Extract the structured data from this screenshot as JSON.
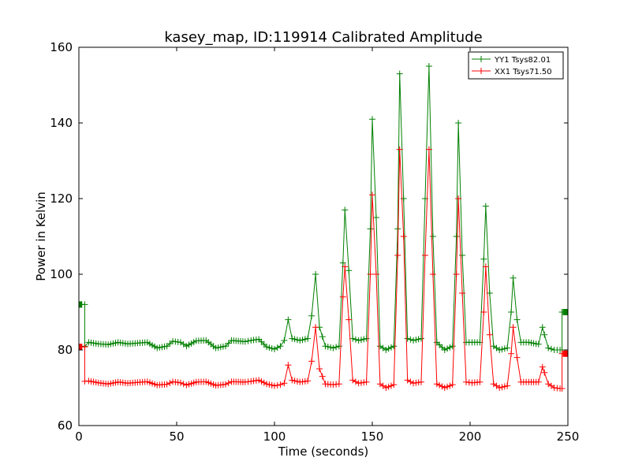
{
  "chart_data": {
    "type": "line",
    "title": "kasey_map, ID:119914 Calibrated Amplitude",
    "xlabel": "Time (seconds)",
    "ylabel": "Power in Kelvin",
    "xlim": [
      0,
      250
    ],
    "ylim": [
      60,
      160
    ],
    "xticks": [
      0,
      50,
      100,
      150,
      200,
      250
    ],
    "yticks": [
      60,
      80,
      100,
      120,
      140,
      160
    ],
    "grid": false,
    "legend_position": "top-right",
    "series": [
      {
        "name": "YY1 Tsys82.01",
        "color": "#008000",
        "marker": "plus",
        "points": [
          [
            0,
            92
          ],
          [
            3,
            92
          ],
          [
            3,
            81
          ],
          [
            5,
            82
          ],
          [
            10,
            81.6
          ],
          [
            15,
            81.4
          ],
          [
            20,
            82
          ],
          [
            25,
            81.6
          ],
          [
            30,
            81.8
          ],
          [
            35,
            82
          ],
          [
            40,
            80.5
          ],
          [
            45,
            81
          ],
          [
            48,
            82.3
          ],
          [
            52,
            82
          ],
          [
            55,
            81
          ],
          [
            60,
            82.4
          ],
          [
            65,
            82.5
          ],
          [
            70,
            80.5
          ],
          [
            75,
            81
          ],
          [
            78,
            82.5
          ],
          [
            85,
            82.2
          ],
          [
            88,
            82.5
          ],
          [
            92,
            82.8
          ],
          [
            96,
            80.8
          ],
          [
            100,
            80.2
          ],
          [
            103,
            81
          ],
          [
            105,
            82.5
          ],
          [
            107,
            88
          ],
          [
            109,
            83
          ],
          [
            113,
            82.5
          ],
          [
            117,
            83
          ],
          [
            119,
            89
          ],
          [
            121,
            100
          ],
          [
            123,
            86
          ],
          [
            126,
            81
          ],
          [
            130,
            80.5
          ],
          [
            133,
            81
          ],
          [
            135,
            103
          ],
          [
            136,
            117
          ],
          [
            138,
            101
          ],
          [
            140,
            83
          ],
          [
            143,
            82.5
          ],
          [
            147,
            83
          ],
          [
            149,
            112
          ],
          [
            150,
            141
          ],
          [
            152,
            115
          ],
          [
            154,
            81
          ],
          [
            157,
            80
          ],
          [
            161,
            81
          ],
          [
            163,
            112
          ],
          [
            164,
            153
          ],
          [
            166,
            120
          ],
          [
            168,
            83
          ],
          [
            171,
            82.5
          ],
          [
            175,
            83
          ],
          [
            177,
            120
          ],
          [
            179,
            155
          ],
          [
            181,
            110
          ],
          [
            183,
            82
          ],
          [
            187,
            80
          ],
          [
            191,
            81
          ],
          [
            193,
            110
          ],
          [
            194,
            140
          ],
          [
            196,
            105
          ],
          [
            198,
            82
          ],
          [
            201,
            82
          ],
          [
            205,
            82
          ],
          [
            207,
            104
          ],
          [
            208,
            118
          ],
          [
            210,
            95
          ],
          [
            212,
            81
          ],
          [
            215,
            80
          ],
          [
            219,
            80.5
          ],
          [
            221,
            90
          ],
          [
            222,
            99
          ],
          [
            224,
            88
          ],
          [
            226,
            82
          ],
          [
            230,
            82
          ],
          [
            235,
            81.5
          ],
          [
            237,
            86
          ],
          [
            238,
            84
          ],
          [
            240,
            80.5
          ],
          [
            243,
            80
          ],
          [
            246,
            80
          ],
          [
            247,
            80
          ],
          [
            247,
            90
          ],
          [
            249,
            90
          ]
        ]
      },
      {
        "name": "XX1 Tsys71.50",
        "color": "#ff0000",
        "marker": "plus",
        "points": [
          [
            0,
            80.8
          ],
          [
            3,
            80.8
          ],
          [
            3,
            71.7
          ],
          [
            5,
            71.8
          ],
          [
            10,
            71.3
          ],
          [
            15,
            71
          ],
          [
            20,
            71.5
          ],
          [
            25,
            71.2
          ],
          [
            30,
            71.4
          ],
          [
            35,
            71.6
          ],
          [
            40,
            70.7
          ],
          [
            45,
            70.9
          ],
          [
            48,
            71.6
          ],
          [
            52,
            71.3
          ],
          [
            55,
            70.7
          ],
          [
            60,
            71.5
          ],
          [
            65,
            71.6
          ],
          [
            70,
            70.6
          ],
          [
            75,
            70.9
          ],
          [
            78,
            71.6
          ],
          [
            85,
            71.5
          ],
          [
            88,
            71.7
          ],
          [
            92,
            72
          ],
          [
            96,
            71
          ],
          [
            100,
            70.5
          ],
          [
            103,
            70.8
          ],
          [
            105,
            71.2
          ],
          [
            107,
            76
          ],
          [
            109,
            72
          ],
          [
            113,
            71.5
          ],
          [
            117,
            71.8
          ],
          [
            119,
            77
          ],
          [
            121,
            86
          ],
          [
            123,
            75
          ],
          [
            126,
            71
          ],
          [
            130,
            70.8
          ],
          [
            133,
            71
          ],
          [
            135,
            94
          ],
          [
            136,
            102
          ],
          [
            138,
            88
          ],
          [
            140,
            72
          ],
          [
            143,
            71.2
          ],
          [
            147,
            71.5
          ],
          [
            149,
            100
          ],
          [
            150,
            121
          ],
          [
            152,
            100
          ],
          [
            154,
            71
          ],
          [
            157,
            70
          ],
          [
            161,
            70.8
          ],
          [
            163,
            105
          ],
          [
            164,
            133
          ],
          [
            166,
            110
          ],
          [
            168,
            72
          ],
          [
            171,
            71.2
          ],
          [
            175,
            71.5
          ],
          [
            177,
            105
          ],
          [
            179,
            133
          ],
          [
            181,
            100
          ],
          [
            183,
            71
          ],
          [
            187,
            70
          ],
          [
            191,
            70.8
          ],
          [
            193,
            100
          ],
          [
            194,
            120
          ],
          [
            196,
            95
          ],
          [
            198,
            71.5
          ],
          [
            201,
            71.3
          ],
          [
            205,
            71.5
          ],
          [
            207,
            90
          ],
          [
            208,
            102
          ],
          [
            210,
            84
          ],
          [
            212,
            71
          ],
          [
            215,
            70
          ],
          [
            219,
            70.5
          ],
          [
            221,
            79
          ],
          [
            222,
            86
          ],
          [
            224,
            78
          ],
          [
            226,
            71.5
          ],
          [
            230,
            71.5
          ],
          [
            235,
            71.5
          ],
          [
            237,
            75.5
          ],
          [
            238,
            74
          ],
          [
            240,
            71
          ],
          [
            243,
            70
          ],
          [
            246,
            69.8
          ],
          [
            247,
            69.8
          ],
          [
            247,
            79
          ],
          [
            249,
            79
          ]
        ]
      }
    ]
  }
}
